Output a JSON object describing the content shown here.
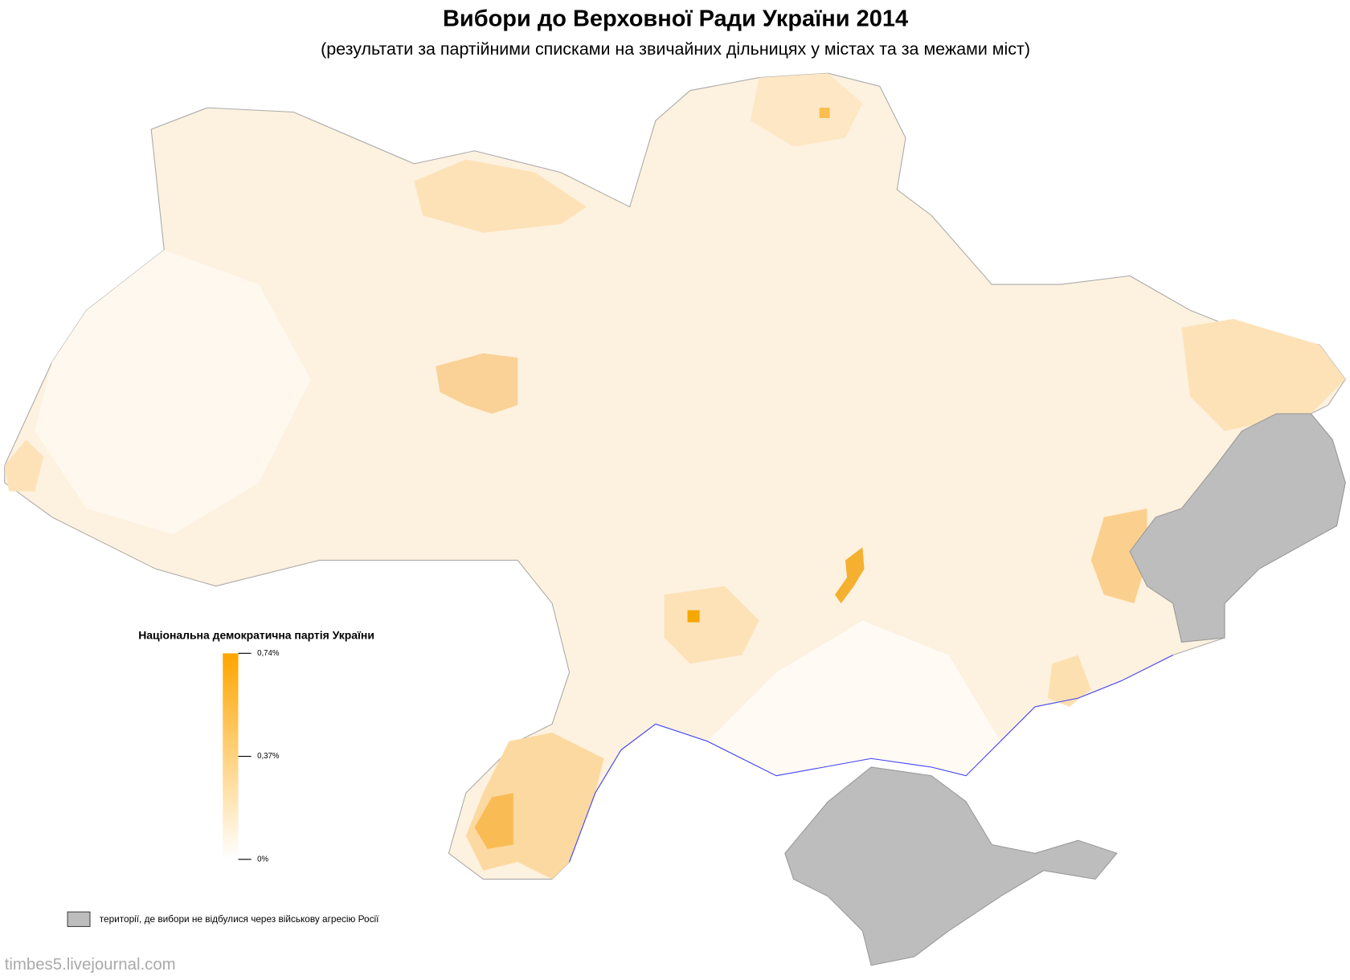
{
  "header": {
    "title": "Вибори до Верховної Ради України 2014",
    "subtitle": "(результати за партійними списками на звичайних дільницях у містах та за межами міст)"
  },
  "legend": {
    "title": "Національна демократична партія України",
    "range": [
      0,
      0.74
    ],
    "ticks": [
      {
        "value": 0.74,
        "label": "0,74%"
      },
      {
        "value": 0.37,
        "label": "0,37%"
      },
      {
        "value": 0,
        "label": "0%"
      }
    ],
    "note": "території, де вибори не відбулися через військову агресію Росії"
  },
  "watermark": "timbes5.livejournal.com"
}
